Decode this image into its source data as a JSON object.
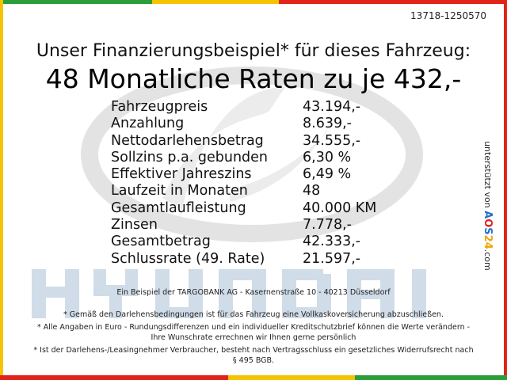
{
  "ref_number": "13718-1250570",
  "headline": "Unser Finanzierungsbeispiel* für dieses Fahrzeug:",
  "big_line": "48 Monatliche Raten zu je 432,-",
  "rows": [
    {
      "label": "Fahrzeugpreis",
      "value": "43.194,-"
    },
    {
      "label": "Anzahlung",
      "value": "8.639,-"
    },
    {
      "label": "Nettodarlehensbetrag",
      "value": "34.555,-"
    },
    {
      "label": "Sollzins p.a. gebunden",
      "value": "6,30 %"
    },
    {
      "label": "Effektiver Jahreszins",
      "value": "6,49 %"
    },
    {
      "label": "Laufzeit in Monaten",
      "value": "48"
    },
    {
      "label": "Gesamtlaufleistung",
      "value": "40.000 KM"
    },
    {
      "label": "Zinsen",
      "value": "7.778,-"
    },
    {
      "label": "Gesamtbetrag",
      "value": "42.333,-"
    },
    {
      "label": "Schlussrate (49. Rate)",
      "value": "21.597,-"
    }
  ],
  "footer": "Ein Beispiel der TARGOBANK AG - Kasernenstraße 10 - 40213 Düsseldorf",
  "notes": [
    "* Gemäß den Darlehensbedingungen ist für das Fahrzeug eine Vollkaskoversicherung abzuschließen.",
    "* Alle Angaben in Euro - Rundungsdifferenzen und ein individueller Kreditschutzbrief können die Werte verändern - Ihre Wunschrate errechnen wir Ihnen gerne persönlich",
    "* Ist der Darlehens-/Leasingnehmer Verbraucher, besteht nach Vertragsschluss ein gesetzliches Widerrufsrecht nach § 495 BGB."
  ],
  "side_text": {
    "prefix": "unterstützt von",
    "brand_a": "A",
    "brand_o": "O",
    "brand_s": "S",
    "brand_num": "24",
    "suffix": ".com"
  },
  "watermark": {
    "wordmark": "HYUNDAI",
    "logo_icon": "hyundai-logo-icon",
    "color": "#c8d6e4"
  },
  "colors": {
    "green": "#2b9e3a",
    "yellow": "#f5c400",
    "red": "#e2231a",
    "blue": "#1d6fd0"
  }
}
